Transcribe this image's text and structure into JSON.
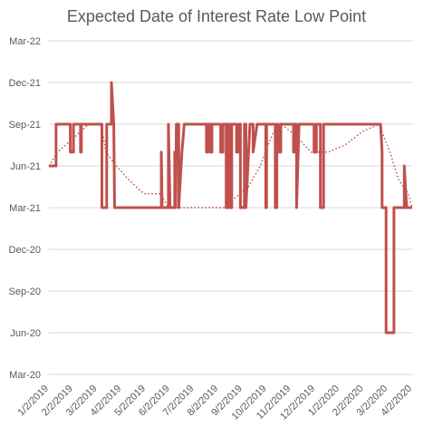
{
  "chart_data": {
    "type": "line",
    "title": "Expected Date of Interest Rate Low Point",
    "xlabel": "",
    "ylabel": "",
    "x_ticks": [
      "1/2/2019",
      "2/2/2019",
      "3/2/2019",
      "4/2/2019",
      "5/2/2019",
      "6/2/2019",
      "7/2/2019",
      "8/2/2019",
      "9/2/2019",
      "10/2/2019",
      "11/2/2019",
      "12/2/2019",
      "1/2/2020",
      "2/2/2020",
      "3/2/2020",
      "4/2/2020"
    ],
    "y_ticks": [
      "Mar-22",
      "Dec-21",
      "Sep-21",
      "Jun-21",
      "Mar-21",
      "Dec-20",
      "Sep-20",
      "Jun-20",
      "Mar-20"
    ],
    "y_unit": "months after Mar-20",
    "ylim": [
      0,
      24
    ],
    "grid": true,
    "colors": {
      "series": "#c0504d",
      "grid": "#d9d9d9",
      "text": "#595959"
    },
    "series": [
      {
        "style": "solid",
        "points": [
          [
            "2019-01-01",
            15
          ],
          [
            "2019-01-10",
            15
          ],
          [
            "2019-01-10",
            18
          ],
          [
            "2019-01-28",
            18
          ],
          [
            "2019-01-28",
            16
          ],
          [
            "2019-02-01",
            16
          ],
          [
            "2019-02-01",
            18
          ],
          [
            "2019-02-10",
            18
          ],
          [
            "2019-02-10",
            16
          ],
          [
            "2019-02-11",
            16
          ],
          [
            "2019-02-11",
            18
          ],
          [
            "2019-03-09",
            18
          ],
          [
            "2019-03-09",
            12
          ],
          [
            "2019-03-15",
            12
          ],
          [
            "2019-03-15",
            18
          ],
          [
            "2019-03-21",
            18
          ],
          [
            "2019-03-21",
            21
          ],
          [
            "2019-03-24",
            18
          ],
          [
            "2019-03-25",
            12
          ],
          [
            "2019-05-23",
            12
          ],
          [
            "2019-05-23",
            16
          ],
          [
            "2019-05-24",
            12
          ],
          [
            "2019-06-01",
            12
          ],
          [
            "2019-06-01",
            18
          ],
          [
            "2019-06-03",
            12
          ],
          [
            "2019-06-09",
            12
          ],
          [
            "2019-06-09",
            16
          ],
          [
            "2019-06-10",
            12
          ],
          [
            "2019-06-11",
            18
          ],
          [
            "2019-06-14",
            18
          ],
          [
            "2019-06-14",
            12
          ],
          [
            "2019-06-18",
            16
          ],
          [
            "2019-06-21",
            18
          ],
          [
            "2019-07-19",
            18
          ],
          [
            "2019-07-19",
            16
          ],
          [
            "2019-07-21",
            16
          ],
          [
            "2019-07-21",
            18
          ],
          [
            "2019-07-24",
            18
          ],
          [
            "2019-07-24",
            16
          ],
          [
            "2019-07-26",
            16
          ],
          [
            "2019-07-26",
            18
          ],
          [
            "2019-08-06",
            18
          ],
          [
            "2019-08-06",
            16
          ],
          [
            "2019-08-09",
            16
          ],
          [
            "2019-08-09",
            18
          ],
          [
            "2019-08-13",
            18
          ],
          [
            "2019-08-13",
            12
          ],
          [
            "2019-08-15",
            12
          ],
          [
            "2019-08-15",
            18
          ],
          [
            "2019-08-17",
            18
          ],
          [
            "2019-08-17",
            12
          ],
          [
            "2019-08-20",
            12
          ],
          [
            "2019-08-20",
            18
          ],
          [
            "2019-08-26",
            18
          ],
          [
            "2019-08-26",
            16
          ],
          [
            "2019-08-29",
            16
          ],
          [
            "2019-08-29",
            18
          ],
          [
            "2019-08-31",
            18
          ],
          [
            "2019-08-31",
            12
          ],
          [
            "2019-09-05",
            12
          ],
          [
            "2019-09-05",
            18
          ],
          [
            "2019-09-07",
            18
          ],
          [
            "2019-09-07",
            12
          ],
          [
            "2019-09-12",
            18
          ],
          [
            "2019-09-16",
            18
          ],
          [
            "2019-09-16",
            16
          ],
          [
            "2019-09-21",
            18
          ],
          [
            "2019-10-02",
            18
          ],
          [
            "2019-10-02",
            12
          ],
          [
            "2019-10-03",
            12
          ],
          [
            "2019-10-03",
            18
          ],
          [
            "2019-10-14",
            18
          ],
          [
            "2019-10-14",
            12
          ],
          [
            "2019-10-16",
            12
          ],
          [
            "2019-10-16",
            18
          ],
          [
            "2019-10-18",
            18
          ],
          [
            "2019-10-18",
            16
          ],
          [
            "2019-10-21",
            16
          ],
          [
            "2019-10-21",
            18
          ],
          [
            "2019-11-06",
            18
          ],
          [
            "2019-11-06",
            16
          ],
          [
            "2019-11-08",
            16
          ],
          [
            "2019-11-08",
            18
          ],
          [
            "2019-11-10",
            18
          ],
          [
            "2019-11-10",
            12
          ],
          [
            "2019-11-13",
            18
          ],
          [
            "2019-12-02",
            18
          ],
          [
            "2019-12-02",
            16
          ],
          [
            "2019-12-05",
            16
          ],
          [
            "2019-12-05",
            18
          ],
          [
            "2019-12-10",
            18
          ],
          [
            "2019-12-10",
            12
          ],
          [
            "2019-12-14",
            12
          ],
          [
            "2019-12-14",
            18
          ],
          [
            "2020-02-24",
            18
          ],
          [
            "2020-02-26",
            16
          ],
          [
            "2020-02-26",
            12
          ],
          [
            "2020-03-02",
            12
          ],
          [
            "2020-03-02",
            3
          ],
          [
            "2020-03-12",
            3
          ],
          [
            "2020-03-12",
            12
          ],
          [
            "2020-03-25",
            12
          ],
          [
            "2020-03-25",
            15
          ],
          [
            "2020-03-28",
            12
          ],
          [
            "2020-04-04",
            12
          ]
        ]
      },
      {
        "style": "dotted",
        "points": [
          [
            "2019-01-01",
            15
          ],
          [
            "2019-01-12",
            16
          ],
          [
            "2019-02-01",
            17
          ],
          [
            "2019-02-20",
            18
          ],
          [
            "2019-03-08",
            18
          ],
          [
            "2019-03-14",
            16
          ],
          [
            "2019-03-27",
            15
          ],
          [
            "2019-04-12",
            14
          ],
          [
            "2019-05-01",
            13
          ],
          [
            "2019-05-22",
            13
          ],
          [
            "2019-06-01",
            12
          ],
          [
            "2019-07-15",
            12
          ],
          [
            "2019-08-10",
            12
          ],
          [
            "2019-09-10",
            13.5
          ],
          [
            "2019-09-25",
            15
          ],
          [
            "2019-10-05",
            16.5
          ],
          [
            "2019-10-12",
            17.5
          ],
          [
            "2019-10-22",
            18
          ],
          [
            "2019-11-12",
            17
          ],
          [
            "2019-11-28",
            16
          ],
          [
            "2019-12-20",
            16
          ],
          [
            "2020-01-10",
            16.5
          ],
          [
            "2020-02-02",
            17.5
          ],
          [
            "2020-02-22",
            18
          ],
          [
            "2020-03-07",
            16
          ],
          [
            "2020-03-18",
            14
          ],
          [
            "2020-03-30",
            13
          ],
          [
            "2020-04-04",
            12
          ]
        ]
      }
    ]
  }
}
